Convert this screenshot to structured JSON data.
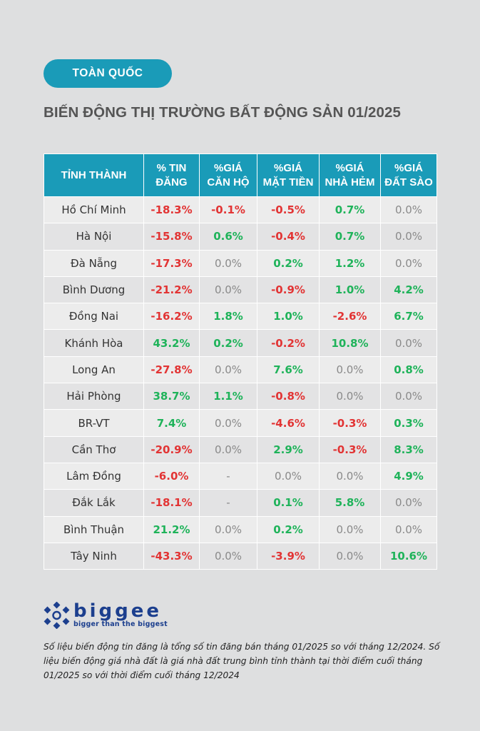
{
  "badge": "TOÀN QUỐC",
  "title": "BIẾN ĐỘNG THỊ TRƯỜNG BẤT ĐỘNG SẢN 01/2025",
  "headers": {
    "col0": "TỈNH THÀNH",
    "col1_line1": "% TIN",
    "col1_line2": "ĐĂNG",
    "col2_line1": "%GIÁ",
    "col2_line2": "CĂN HỘ",
    "col3_line1": "%GIÁ",
    "col3_line2": "MẶT TIỀN",
    "col4_line1": "%GIÁ",
    "col4_line2": "NHÀ HẺM",
    "col5_line1": "%GIÁ",
    "col5_line2": "ĐẤT SÀO"
  },
  "rows": [
    {
      "name": "Hồ Chí Minh",
      "v": [
        "-18.3%",
        "-0.1%",
        "-0.5%",
        "0.7%",
        "0.0%"
      ],
      "s": [
        "neg",
        "neg",
        "neg",
        "pos",
        "zero"
      ]
    },
    {
      "name": "Hà Nội",
      "v": [
        "-15.8%",
        "0.6%",
        "-0.4%",
        "0.7%",
        "0.0%"
      ],
      "s": [
        "neg",
        "pos",
        "neg",
        "pos",
        "zero"
      ]
    },
    {
      "name": "Đà Nẵng",
      "v": [
        "-17.3%",
        "0.0%",
        "0.2%",
        "1.2%",
        "0.0%"
      ],
      "s": [
        "neg",
        "zero",
        "pos",
        "pos",
        "zero"
      ]
    },
    {
      "name": "Bình Dương",
      "v": [
        "-21.2%",
        "0.0%",
        "-0.9%",
        "1.0%",
        "4.2%"
      ],
      "s": [
        "neg",
        "zero",
        "neg",
        "pos",
        "pos"
      ]
    },
    {
      "name": "Đồng Nai",
      "v": [
        "-16.2%",
        "1.8%",
        "1.0%",
        "-2.6%",
        "6.7%"
      ],
      "s": [
        "neg",
        "pos",
        "pos",
        "neg",
        "pos"
      ]
    },
    {
      "name": "Khánh Hòa",
      "v": [
        "43.2%",
        "0.2%",
        "-0.2%",
        "10.8%",
        "0.0%"
      ],
      "s": [
        "pos",
        "pos",
        "neg",
        "pos",
        "zero"
      ]
    },
    {
      "name": "Long An",
      "v": [
        "-27.8%",
        "0.0%",
        "7.6%",
        "0.0%",
        "0.8%"
      ],
      "s": [
        "neg",
        "zero",
        "pos",
        "zero",
        "pos"
      ]
    },
    {
      "name": "Hải Phòng",
      "v": [
        "38.7%",
        "1.1%",
        "-0.8%",
        "0.0%",
        "0.0%"
      ],
      "s": [
        "pos",
        "pos",
        "neg",
        "zero",
        "zero"
      ]
    },
    {
      "name": "BR-VT",
      "v": [
        "7.4%",
        "0.0%",
        "-4.6%",
        "-0.3%",
        "0.3%"
      ],
      "s": [
        "pos",
        "zero",
        "neg",
        "neg",
        "pos"
      ]
    },
    {
      "name": "Cần Thơ",
      "v": [
        "-20.9%",
        "0.0%",
        "2.9%",
        "-0.3%",
        "8.3%"
      ],
      "s": [
        "neg",
        "zero",
        "pos",
        "neg",
        "pos"
      ]
    },
    {
      "name": "Lâm Đồng",
      "v": [
        "-6.0%",
        "-",
        "0.0%",
        "0.0%",
        "4.9%"
      ],
      "s": [
        "neg",
        "dash",
        "zero",
        "zero",
        "pos"
      ]
    },
    {
      "name": "Đắk Lắk",
      "v": [
        "-18.1%",
        "-",
        "0.1%",
        "5.8%",
        "0.0%"
      ],
      "s": [
        "neg",
        "dash",
        "pos",
        "pos",
        "zero"
      ]
    },
    {
      "name": "Bình Thuận",
      "v": [
        "21.2%",
        "0.0%",
        "0.2%",
        "0.0%",
        "0.0%"
      ],
      "s": [
        "pos",
        "zero",
        "pos",
        "zero",
        "zero"
      ]
    },
    {
      "name": "Tây Ninh",
      "v": [
        "-43.3%",
        "0.0%",
        "-3.9%",
        "0.0%",
        "10.6%"
      ],
      "s": [
        "neg",
        "zero",
        "neg",
        "zero",
        "pos"
      ]
    }
  ],
  "logo": {
    "word": "biggee",
    "tagline": "bigger than the biggest"
  },
  "footnote": "Số liệu biến động tin đăng là tổng số tin đăng bán tháng 01/2025 so với tháng 12/2024. Số liệu biến động giá nhà đất là giá nhà đất trung bình tỉnh thành tại thời điểm cuối tháng 01/2025 so với thời điểm cuối tháng 12/2024",
  "colors": {
    "accent": "#1a9bb8",
    "negative": "#e23434",
    "positive": "#1fb35a",
    "neutral": "#8a8a8a",
    "logo": "#1c3f8e",
    "background": "#dedfe0"
  }
}
